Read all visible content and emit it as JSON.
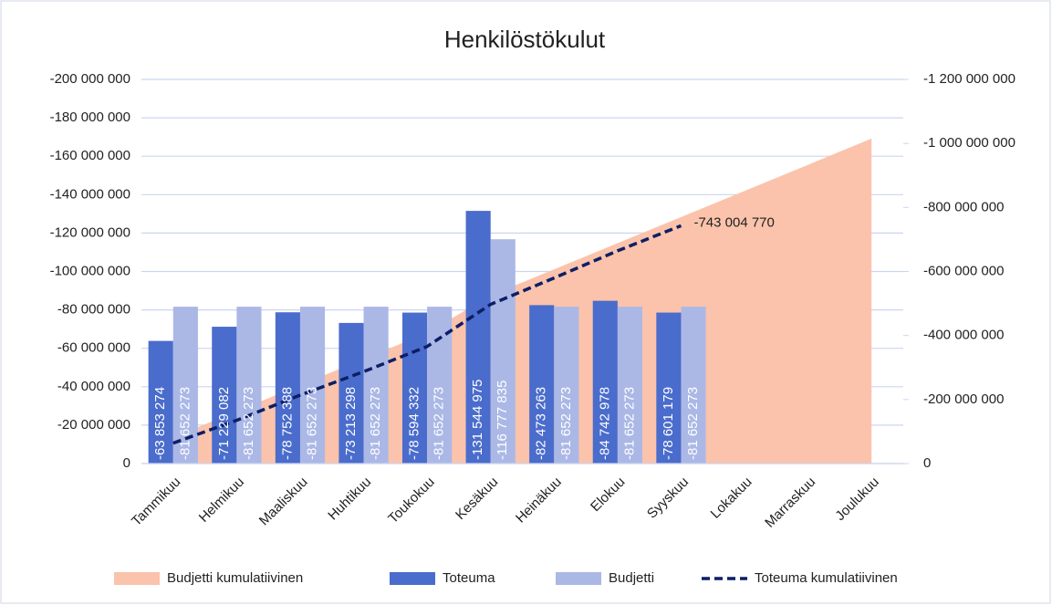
{
  "chart_data": {
    "type": "bar",
    "title": "Henkilöstökulut",
    "categories": [
      "Tammikuu",
      "Helmikuu",
      "Maaliskuu",
      "Huhtikuu",
      "Toukokuu",
      "Kesäkuu",
      "Heinäkuu",
      "Elokuu",
      "Syyskuu",
      "Lokakuu",
      "Marraskuu",
      "Joulukuu"
    ],
    "ylim": [
      0,
      -200000000
    ],
    "yticks": [
      0,
      {
        "value": -20000000,
        "label": "-20 000 000"
      },
      {
        "value": -40000000,
        "label": "-40 000 000"
      },
      {
        "value": -60000000,
        "label": "-60 000 000"
      },
      {
        "value": -80000000,
        "label": "-80 000 000"
      },
      {
        "value": -100000000,
        "label": "-100 000 000"
      },
      {
        "value": -120000000,
        "label": "-120 000 000"
      },
      {
        "value": -140000000,
        "label": "-140 000 000"
      },
      {
        "value": -160000000,
        "label": "-160 000 000"
      },
      {
        "value": -180000000,
        "label": "-180 000 000"
      },
      {
        "value": -200000000,
        "label": "-200 000 000"
      }
    ],
    "y2lim": [
      0,
      -1200000000
    ],
    "y2ticks": [
      0,
      {
        "value": -200000000,
        "label": "-200 000 000"
      },
      {
        "value": -400000000,
        "label": "-400 000 000"
      },
      {
        "value": -600000000,
        "label": "-600 000 000"
      },
      {
        "value": -800000000,
        "label": "-800 000 000"
      },
      {
        "value": -1000000000,
        "label": "-1 000 000 000"
      },
      {
        "value": -1200000000,
        "label": "-1 200 000 000"
      }
    ],
    "grid": true,
    "legend": "bottom",
    "series": [
      {
        "name": "Budjetti kumulatiivinen",
        "type": "area",
        "axis": "y2",
        "color": "#fbc3ab",
        "values": [
          -81652273,
          -163304546,
          -244956819,
          -326609092,
          -408261365,
          -525039200,
          -606691473,
          -688343746,
          -769996019,
          -851648292,
          -933300565,
          -1014952838
        ]
      },
      {
        "name": "Toteuma",
        "type": "bar",
        "color": "#4a6ccc",
        "values": [
          -63853274,
          -71229082,
          -78752388,
          -73213298,
          -78594332,
          -131544975,
          -82473263,
          -84742978,
          -78601179,
          null,
          null,
          null
        ],
        "value_labels": [
          "-63 853 274",
          "-71 229 082",
          "-78 752 388",
          "-73 213 298",
          "-78 594 332",
          "-131 544 975",
          "-82 473 263",
          "-84 742 978",
          "-78 601 179",
          null,
          null,
          null
        ]
      },
      {
        "name": "Budjetti",
        "type": "bar",
        "color": "#abb8e6",
        "values": [
          -81652273,
          -81652273,
          -81652273,
          -81652273,
          -81652273,
          -116777835,
          -81652273,
          -81652273,
          -81652273,
          null,
          null,
          null
        ],
        "value_labels": [
          "-81 652 273",
          "-81 652 273",
          "-81 652 273",
          "-81 652 273",
          "-81 652 273",
          "-116 777 835",
          "-81 652 273",
          "-81 652 273",
          "-81 652 273",
          null,
          null,
          null
        ]
      },
      {
        "name": "Toteuma kumulatiivinen",
        "type": "line",
        "axis": "y2",
        "color": "#0c1f66",
        "dashed": true,
        "values": [
          -63853274,
          -135082356,
          -213834744,
          -287048042,
          -365642374,
          -497187349,
          -579660612,
          -664403590,
          -743004770,
          null,
          null,
          null
        ],
        "value_labels": [
          null,
          null,
          null,
          null,
          null,
          null,
          null,
          null,
          "-743 004 770",
          null,
          null,
          null
        ]
      }
    ]
  }
}
